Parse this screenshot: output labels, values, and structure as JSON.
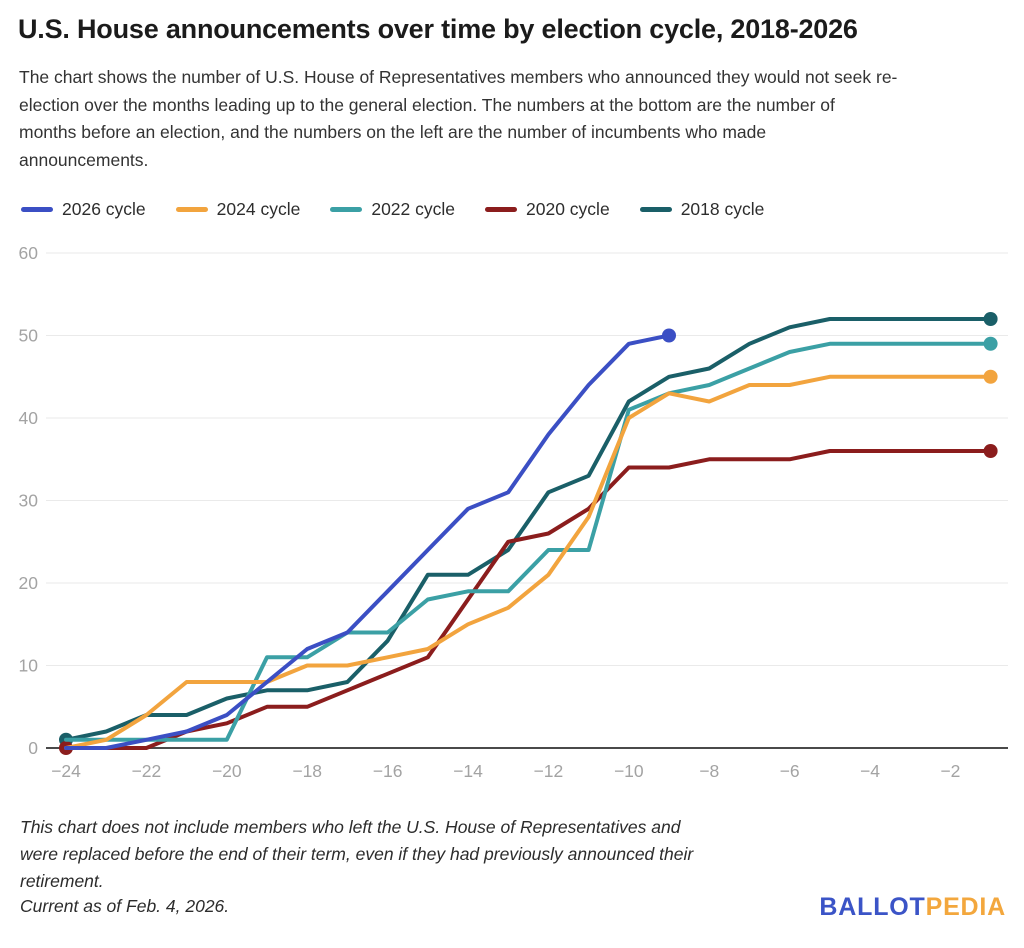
{
  "title": "U.S. House announcements over time by election cycle, 2018-2026",
  "subtitle_lines": [
    "The chart shows the number of U.S. House of Representatives members who announced they would not seek re-",
    "election over the months leading up to the general election. The numbers at the bottom are the number of",
    "months before an election, and the numbers on the left are the number of incumbents who made",
    "announcements."
  ],
  "footnote_lines": [
    "This chart does not include members who left the U.S. House of Representatives and",
    "were replaced before the end of their term, even if they had previously announced their",
    "retirement."
  ],
  "current_as_of": "Current as of Feb. 4, 2026.",
  "logo": {
    "part1": "BALLOT",
    "part2": "PEDIA",
    "color1": "#3B54C7",
    "color2": "#F3A73D"
  },
  "chart_data": {
    "type": "line",
    "title": "U.S. House announcements over time by election cycle, 2018-2026",
    "xlabel": "",
    "ylabel": "",
    "ylim": [
      0,
      60
    ],
    "xlim": [
      -24,
      -1
    ],
    "yticks": [
      0,
      10,
      20,
      30,
      40,
      50,
      60
    ],
    "xticks": [
      -24,
      -22,
      -20,
      -18,
      -16,
      -14,
      -12,
      -10,
      -8,
      -6,
      -4,
      -2
    ],
    "xtick_labels": [
      "−24",
      "−22",
      "−20",
      "−18",
      "−16",
      "−14",
      "−12",
      "−10",
      "−8",
      "−6",
      "−4",
      "−2"
    ],
    "grid": true,
    "legend_position": "top",
    "axis_color": "#4a4a4a",
    "grid_color": "#eaeaea",
    "tick_label_color": "#a3a3a3",
    "series": [
      {
        "name": "2026 cycle",
        "color": "#3B4FC4",
        "months": [
          -24,
          -23,
          -22,
          -21,
          -20,
          -19,
          -18,
          -17,
          -16,
          -15,
          -14,
          -13,
          -12,
          -11,
          -10,
          -9
        ],
        "values": [
          0,
          0,
          1,
          2,
          4,
          8,
          12,
          14,
          19,
          24,
          29,
          31,
          38,
          44,
          49,
          50
        ],
        "start_dot": false,
        "end_dot": true
      },
      {
        "name": "2024 cycle",
        "color": "#F2A43E",
        "months": [
          -24,
          -23,
          -22,
          -21,
          -20,
          -19,
          -18,
          -17,
          -16,
          -15,
          -14,
          -13,
          -12,
          -11,
          -10,
          -9,
          -8,
          -7,
          -6,
          -5,
          -4,
          -3,
          -2,
          -1
        ],
        "values": [
          0,
          1,
          4,
          8,
          8,
          8,
          10,
          10,
          11,
          12,
          15,
          17,
          21,
          28,
          40,
          43,
          42,
          44,
          44,
          45,
          45,
          45,
          45,
          45
        ],
        "start_dot": false,
        "end_dot": true
      },
      {
        "name": "2022 cycle",
        "color": "#3BA0A5",
        "months": [
          -24,
          -23,
          -22,
          -21,
          -20,
          -19,
          -18,
          -17,
          -16,
          -15,
          -14,
          -13,
          -12,
          -11,
          -10,
          -9,
          -8,
          -7,
          -6,
          -5,
          -4,
          -3,
          -2,
          -1
        ],
        "values": [
          1,
          1,
          1,
          1,
          1,
          11,
          11,
          14,
          14,
          18,
          19,
          19,
          24,
          24,
          41,
          43,
          44,
          46,
          48,
          49,
          49,
          49,
          49,
          49
        ],
        "start_dot": false,
        "end_dot": true
      },
      {
        "name": "2020 cycle",
        "color": "#8B1D1D",
        "months": [
          -24,
          -23,
          -22,
          -21,
          -20,
          -19,
          -18,
          -17,
          -16,
          -15,
          -14,
          -13,
          -12,
          -11,
          -10,
          -9,
          -8,
          -7,
          -6,
          -5,
          -4,
          -3,
          -2,
          -1
        ],
        "values": [
          0,
          0,
          0,
          2,
          3,
          5,
          5,
          7,
          9,
          11,
          18,
          25,
          26,
          29,
          34,
          34,
          35,
          35,
          35,
          36,
          36,
          36,
          36,
          36
        ],
        "start_dot": true,
        "end_dot": true
      },
      {
        "name": "2018 cycle",
        "color": "#1A5F68",
        "months": [
          -24,
          -23,
          -22,
          -21,
          -20,
          -19,
          -18,
          -17,
          -16,
          -15,
          -14,
          -13,
          -12,
          -11,
          -10,
          -9,
          -8,
          -7,
          -6,
          -5,
          -4,
          -3,
          -2,
          -1
        ],
        "values": [
          1,
          2,
          4,
          4,
          6,
          7,
          7,
          8,
          13,
          21,
          21,
          24,
          31,
          33,
          42,
          45,
          46,
          49,
          51,
          52,
          52,
          52,
          52,
          52
        ],
        "start_dot": true,
        "end_dot": true
      }
    ]
  }
}
